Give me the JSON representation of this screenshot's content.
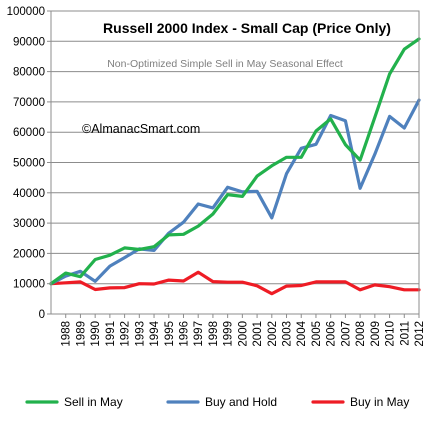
{
  "chart_data": {
    "type": "line",
    "title": "Russell 2000 Index - Small Cap (Price Only)",
    "subtitle": "Non-Optimized Simple Sell in May Seasonal Effect",
    "watermark": "©AlmanacSmart.com",
    "xlabel": "",
    "ylabel": "",
    "ylim": [
      0,
      100000
    ],
    "y_ticks": [
      "0",
      "10000",
      "20000",
      "30000",
      "40000",
      "50000",
      "60000",
      "70000",
      "80000",
      "90000",
      "100000"
    ],
    "categories": [
      "1988",
      "1989",
      "1990",
      "1991",
      "1992",
      "1993",
      "1994",
      "1995",
      "1996",
      "1997",
      "1998",
      "1999",
      "2000",
      "2001",
      "2002",
      "2003",
      "2004",
      "2005",
      "2006",
      "2007",
      "2008",
      "2009",
      "2010",
      "2011",
      "2012"
    ],
    "grid": true,
    "legend_position": "bottom",
    "x": [
      1987,
      1988,
      1989,
      1990,
      1991,
      1992,
      1993,
      1994,
      1995,
      1996,
      1997,
      1998,
      1999,
      2000,
      2001,
      2002,
      2003,
      2004,
      2005,
      2006,
      2007,
      2008,
      2009,
      2010,
      2011,
      2012
    ],
    "series": [
      {
        "name": "Sell in May",
        "color": "#22b14c",
        "values": [
          10000,
          13500,
          12300,
          18000,
          19400,
          21800,
          21300,
          22200,
          26100,
          26300,
          29000,
          33000,
          39400,
          38800,
          45500,
          48900,
          51700,
          51700,
          60400,
          64400,
          55900,
          50800,
          64900,
          79200,
          87400,
          90800
        ]
      },
      {
        "name": "Buy and Hold",
        "color": "#4f81bd",
        "values": [
          10000,
          12500,
          14100,
          10800,
          15800,
          18600,
          21500,
          21000,
          26700,
          30300,
          36300,
          35000,
          41800,
          40300,
          40500,
          31700,
          46300,
          54700,
          56000,
          65500,
          63800,
          41500,
          52700,
          65200,
          61400,
          70600
        ]
      },
      {
        "name": "Buy in May",
        "color": "#ee1c25",
        "values": [
          10000,
          10300,
          10600,
          8100,
          8600,
          8700,
          10000,
          9900,
          11200,
          10900,
          13800,
          10700,
          10500,
          10500,
          9300,
          6700,
          9200,
          9400,
          10600,
          10600,
          10600,
          8000,
          9600,
          9000,
          8000,
          8000
        ]
      }
    ]
  }
}
